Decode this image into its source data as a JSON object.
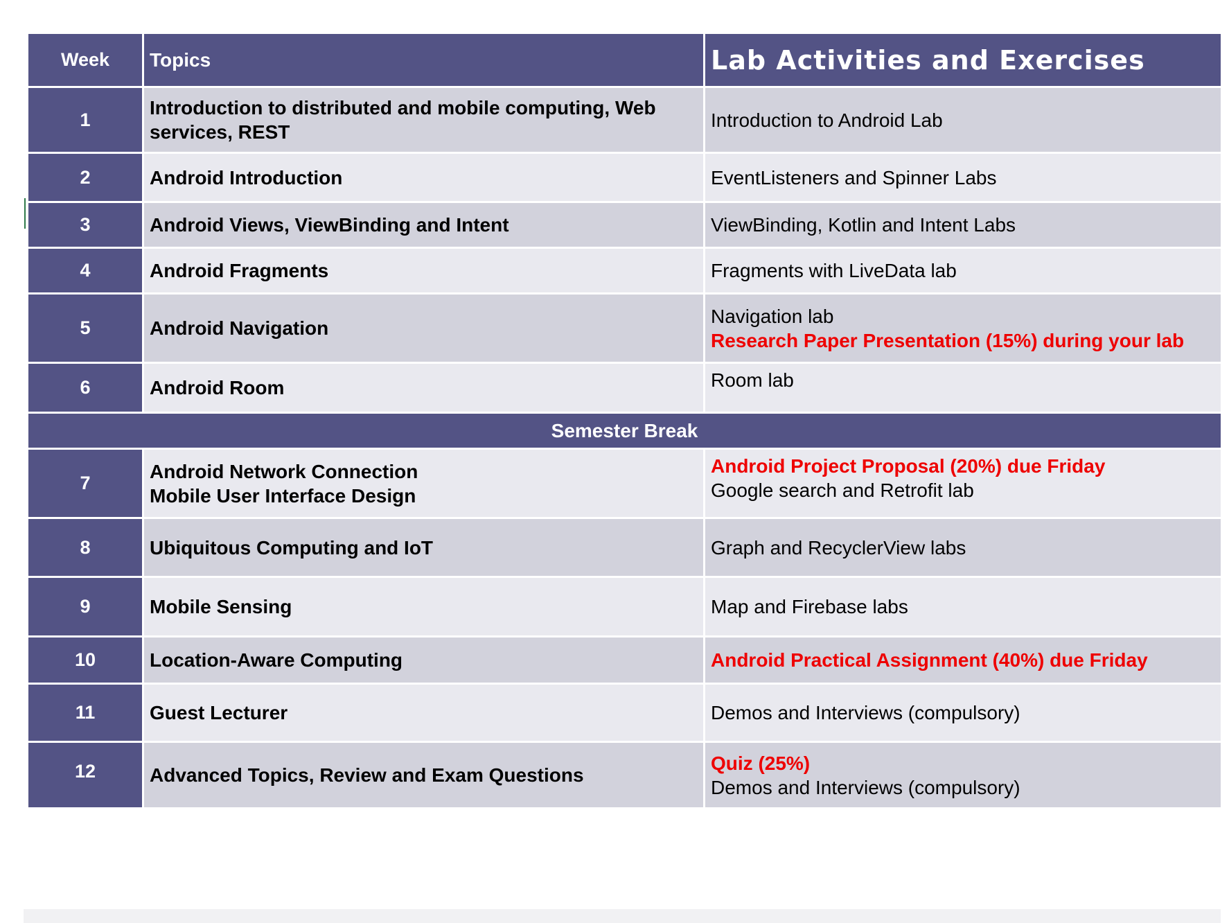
{
  "header": {
    "week": "Week",
    "topics": "Topics",
    "lab": "Lab Activities and Exercises"
  },
  "rows": [
    {
      "week": "1",
      "topics": [
        "Introduction to distributed and mobile computing, Web services, REST"
      ],
      "lab": [
        "Introduction to Android Lab"
      ]
    },
    {
      "week": "2",
      "topics": [
        "Android Introduction"
      ],
      "lab": [
        "EventListeners and Spinner Labs"
      ]
    },
    {
      "week": "3",
      "topics": [
        "Android Views, ViewBinding and Intent"
      ],
      "lab": [
        "ViewBinding, Kotlin and Intent Labs"
      ]
    },
    {
      "week": "4",
      "topics": [
        "Android Fragments"
      ],
      "lab": [
        "Fragments with LiveData lab"
      ]
    },
    {
      "week": "5",
      "topics": [
        "Android Navigation"
      ],
      "lab": [
        "Navigation lab",
        "Research Paper Presentation (15%) during your lab"
      ]
    },
    {
      "week": "6",
      "topics": [
        "Android Room"
      ],
      "lab": [
        "Room lab"
      ]
    },
    {
      "week": "7",
      "topics": [
        "Android Network Connection",
        "Mobile User Interface Design"
      ],
      "lab": [
        "Android Project Proposal (20%) due Friday",
        "Google search and Retrofit lab"
      ]
    },
    {
      "week": "8",
      "topics": [
        "Ubiquitous Computing and IoT"
      ],
      "lab": [
        "Graph and RecyclerView labs"
      ]
    },
    {
      "week": "9",
      "topics": [
        "Mobile Sensing"
      ],
      "lab": [
        "Map and Firebase labs"
      ]
    },
    {
      "week": "10",
      "topics": [
        "Location-Aware Computing"
      ],
      "lab": [
        "Android Practical Assignment (40%) due Friday"
      ]
    },
    {
      "week": "11",
      "topics": [
        "Guest Lecturer"
      ],
      "lab": [
        "Demos and Interviews (compulsory)"
      ]
    },
    {
      "week": "12",
      "topics": [
        "Advanced Topics, Review and Exam Questions"
      ],
      "lab": [
        "Quiz (25%)",
        "Demos and Interviews (compulsory)"
      ]
    }
  ],
  "semester_break": "Semester Break",
  "colors": {
    "header_bg": "#535385",
    "row_odd": "#d2d2dc",
    "row_even": "#e9e9ef",
    "highlight": "#ee0000"
  }
}
